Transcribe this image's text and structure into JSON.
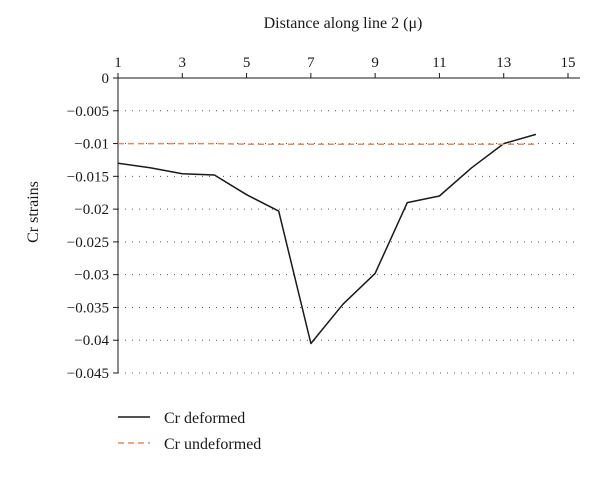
{
  "chart_data": {
    "type": "line",
    "xlabel": "Distance along line 2 (μ)",
    "ylabel": "Cr strains",
    "xlim": [
      1,
      15
    ],
    "ylim": [
      -0.045,
      0
    ],
    "x_axis_position": "top",
    "x_ticks": [
      1,
      3,
      5,
      7,
      9,
      11,
      13,
      15
    ],
    "x_tick_labels": [
      "1",
      "3",
      "5",
      "7",
      "9",
      "11",
      "13",
      "15"
    ],
    "y_ticks": [
      0,
      -0.005,
      -0.01,
      -0.015,
      -0.02,
      -0.025,
      -0.03,
      -0.035,
      -0.04,
      -0.045
    ],
    "y_tick_labels": [
      "0",
      "−0.005",
      "−0.01",
      "−0.015",
      "−0.02",
      "−0.025",
      "−0.03",
      "−0.035",
      "−0.04",
      "−0.045"
    ],
    "grid": "horizontal dotted",
    "legend_position": "bottom-left",
    "series": [
      {
        "name": "Cr deformed",
        "color": "#1a1a1a",
        "style": "solid",
        "x": [
          1,
          2,
          3,
          4,
          5,
          6,
          7,
          8,
          9,
          10,
          11,
          12,
          13,
          14
        ],
        "y": [
          -0.013,
          -0.0137,
          -0.0146,
          -0.0148,
          -0.0178,
          -0.0203,
          -0.0405,
          -0.0345,
          -0.0298,
          -0.019,
          -0.018,
          -0.0137,
          -0.01,
          -0.0086
        ]
      },
      {
        "name": "Cr undeformed",
        "color": "#e8895a",
        "style": "dashed",
        "x": [
          1,
          2,
          3,
          4,
          5,
          6,
          7,
          8,
          9,
          10,
          11,
          12,
          13,
          14
        ],
        "y": [
          -0.01,
          -0.01,
          -0.01,
          -0.01,
          -0.0101,
          -0.0101,
          -0.0101,
          -0.0101,
          -0.0101,
          -0.0101,
          -0.0101,
          -0.0101,
          -0.0101,
          -0.0101
        ]
      }
    ]
  }
}
